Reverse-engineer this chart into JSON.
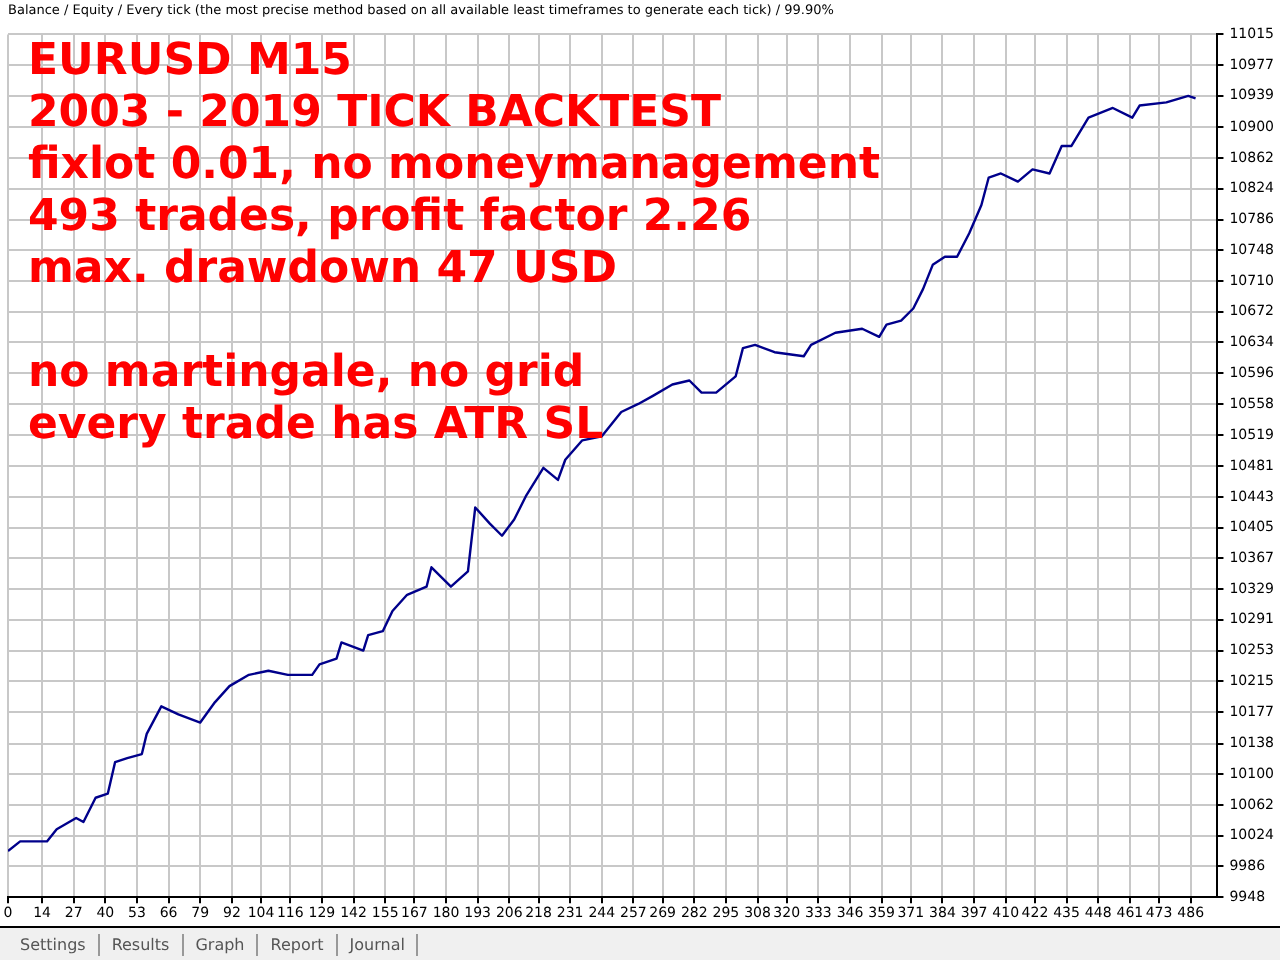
{
  "chart_data": {
    "type": "line",
    "subtitle": "Balance / Equity / Every tick (the most precise method based on all available least timeframes to generate each tick) / 99.90%",
    "annotations": [
      "EURUSD M15\n2003 - 2019 TICK BACKTEST\nfixlot 0.01, no moneymanagement\n493 trades, profit factor 2.26\nmax. drawdown 47 USD",
      "no martingale, no grid\nevery trade has ATR SL",
      "Settings",
      "Results",
      "Graph",
      "Report",
      "Journal"
    ],
    "x": [
      0,
      5,
      16,
      20,
      28,
      31,
      36,
      41,
      44,
      49,
      55,
      57,
      63,
      70,
      79,
      85,
      91,
      99,
      107,
      115,
      125,
      128,
      135,
      137,
      146,
      148,
      154,
      158,
      164,
      172,
      174,
      182,
      189,
      192,
      198,
      203,
      208,
      213,
      220,
      226,
      229,
      236,
      244,
      252,
      259,
      265,
      273,
      280,
      285,
      291,
      299,
      302,
      307,
      315,
      327,
      330,
      340,
      351,
      358,
      361,
      367,
      372,
      376,
      380,
      385,
      390,
      395,
      400,
      403,
      408,
      415,
      421,
      428,
      433,
      437,
      444,
      454,
      462,
      465,
      476,
      485,
      488
    ],
    "series": [
      {
        "color": "#00008b",
        "values": [
          10005,
          10017,
          10017,
          10032,
          10046,
          10041,
          10071,
          10076,
          10115,
          10120,
          10125,
          10150,
          10184,
          10174,
          10164,
          10189,
          10209,
          10223,
          10228,
          10223,
          10223,
          10236,
          10243,
          10263,
          10253,
          10272,
          10277,
          10302,
          10322,
          10332,
          10356,
          10332,
          10351,
          10430,
          10410,
          10395,
          10415,
          10445,
          10479,
          10464,
          10489,
          10513,
          10518,
          10548,
          10558,
          10568,
          10582,
          10587,
          10572,
          10572,
          10592,
          10627,
          10631,
          10622,
          10617,
          10631,
          10646,
          10651,
          10641,
          10656,
          10661,
          10676,
          10700,
          10730,
          10740,
          10740,
          10769,
          10804,
          10838,
          10843,
          10833,
          10848,
          10843,
          10877,
          10877,
          10912,
          10924,
          10912,
          10927,
          10931,
          10939,
          10936
        ]
      }
    ],
    "xlim": [
      0,
      497
    ],
    "xticks": [
      0,
      14,
      27,
      40,
      53,
      66,
      79,
      92,
      104,
      116,
      129,
      142,
      155,
      167,
      180,
      193,
      206,
      218,
      231,
      244,
      257,
      269,
      282,
      295,
      308,
      320,
      333,
      346,
      359,
      371,
      384,
      397,
      410,
      422,
      435,
      448,
      461,
      473,
      486
    ],
    "ylim": [
      9948,
      11015
    ],
    "yticks": [
      9948,
      9986,
      10024,
      10062,
      10100,
      10138,
      10177,
      10215,
      10253,
      10291,
      10329,
      10367,
      10405,
      10443,
      10481,
      10519,
      10558,
      10596,
      10634,
      10672,
      10710,
      10748,
      10786,
      10824,
      10862,
      10900,
      10939,
      10977,
      11015
    ],
    "grid": true,
    "legend": false,
    "marker": "none",
    "line_style": "solid"
  }
}
